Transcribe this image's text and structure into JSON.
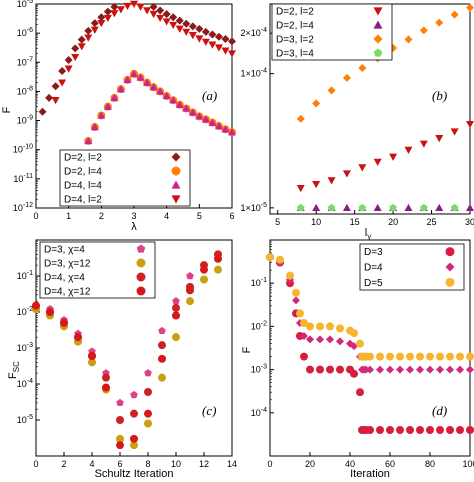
{
  "chart_data": [
    {
      "panel_label": "(a)",
      "type": "scatter",
      "title": "",
      "xlabel": "λ",
      "ylabel": "F",
      "xlim": [
        0,
        6
      ],
      "ylim": [
        1e-12,
        1e-05
      ],
      "yscale": "log",
      "xticks": [
        "0",
        "1",
        "2",
        "3",
        "4",
        "5",
        "6"
      ],
      "yticks": [
        "10^-12",
        "10^-11",
        "10^-10",
        "10^-9",
        "10^-8",
        "10^-7",
        "10^-6",
        "10^-5"
      ],
      "legend": "lower-right",
      "series": [
        {
          "name": "D=2, l=2",
          "color": "#8b1a1a",
          "marker": "diamond",
          "x": [
            0.2,
            0.4,
            0.6,
            0.8,
            1.0,
            1.2,
            1.4,
            1.6,
            1.8,
            2.0,
            2.2,
            2.4,
            2.6,
            2.8,
            3.0,
            3.2,
            3.4,
            3.6,
            3.8,
            4.0,
            4.2,
            4.4,
            4.6,
            4.8,
            5.0,
            5.2,
            5.4,
            5.6,
            5.8,
            6.0
          ],
          "y": [
            2e-09,
            6e-09,
            1.5e-08,
            5e-08,
            1.2e-07,
            3e-07,
            6e-07,
            1.2e-06,
            2.2e-06,
            3.5e-06,
            5.5e-06,
            8e-06,
            1.1e-05,
            1.5e-05,
            1.8e-05,
            1.5e-05,
            1.1e-05,
            8e-06,
            6e-06,
            4.5e-06,
            3.5e-06,
            2.7e-06,
            2.1e-06,
            1.7e-06,
            1.4e-06,
            1.1e-06,
            9e-07,
            7.5e-07,
            6.3e-07,
            5.2e-07
          ]
        },
        {
          "name": "D=2, l=4",
          "color": "#ff7f00",
          "marker": "circle",
          "x": [
            1.2,
            1.4,
            1.6,
            1.8,
            2.0,
            2.2,
            2.4,
            2.6,
            2.8,
            3.0,
            3.2,
            3.4,
            3.6,
            3.8,
            4.0,
            4.2,
            4.4,
            4.6,
            4.8,
            5.0,
            5.2,
            5.4,
            5.6,
            5.8,
            6.0
          ],
          "y": [
            1e-11,
            5e-11,
            2e-10,
            6e-10,
            1.5e-09,
            3e-09,
            6e-09,
            1.2e-08,
            2.5e-08,
            4e-08,
            3e-08,
            2e-08,
            1.4e-08,
            1e-08,
            7e-09,
            5e-09,
            3.5e-09,
            2.6e-09,
            1.9e-09,
            1.4e-09,
            1.1e-09,
            8.5e-10,
            6.5e-10,
            5e-10,
            4e-10
          ]
        },
        {
          "name": "D=4, l=4",
          "color": "#cc2299",
          "marker": "triangle-up",
          "x": [
            1.4,
            1.6,
            1.8,
            2.0,
            2.2,
            2.4,
            2.6,
            2.8,
            3.0,
            3.2,
            3.4,
            3.6,
            3.8,
            4.0,
            4.2,
            4.4,
            4.6,
            4.8,
            5.0,
            5.2,
            5.4,
            5.6,
            5.8,
            6.0
          ],
          "y": [
            5e-11,
            2e-10,
            6e-10,
            1.5e-09,
            3e-09,
            6e-09,
            1.2e-08,
            2.5e-08,
            4e-08,
            3e-08,
            2e-08,
            1.4e-08,
            1e-08,
            7e-09,
            5e-09,
            3.5e-09,
            2.6e-09,
            1.9e-09,
            1.4e-09,
            1.1e-09,
            8.5e-10,
            6.5e-10,
            5e-10,
            4e-10
          ]
        },
        {
          "name": "D=4, l=2",
          "color": "#cc1111",
          "marker": "triangle-down",
          "x": [
            0.6,
            0.8,
            1.0,
            1.2,
            1.4,
            1.6,
            1.8,
            2.0,
            2.2,
            2.4,
            2.6,
            2.8,
            3.0,
            3.2,
            3.4,
            3.6,
            3.8,
            4.0,
            4.2,
            4.4,
            4.6,
            4.8,
            5.0,
            5.2,
            5.4,
            5.6,
            5.8,
            6.0
          ],
          "y": [
            5e-09,
            2e-08,
            6e-08,
            1.5e-07,
            3.5e-07,
            7e-07,
            1.3e-06,
            2.2e-06,
            3.3e-06,
            4.8e-06,
            6.5e-06,
            8.5e-06,
            1e-05,
            8e-06,
            6e-06,
            4.5e-06,
            3.3e-06,
            2.5e-06,
            1.9e-06,
            1.4e-06,
            1.1e-06,
            8.5e-07,
            6.5e-07,
            5e-07,
            4e-07,
            3.2e-07,
            2.5e-07,
            2e-07
          ]
        }
      ]
    },
    {
      "panel_label": "(b)",
      "type": "scatter",
      "title": "",
      "xlabel": "l_y",
      "ylabel": "",
      "xlim": [
        4,
        30
      ],
      "ylim": [
        9e-06,
        0.00033
      ],
      "yscale": "log",
      "xticks": [
        "5",
        "10",
        "15",
        "20",
        "25",
        "30"
      ],
      "yticks": [
        "1×10^-5",
        "1×10^-4",
        "2×10^-4"
      ],
      "legend": "top-left",
      "series": [
        {
          "name": "D=2, l=2",
          "color": "#cc1111",
          "marker": "triangle-down",
          "x": [
            8,
            10,
            12,
            14,
            16,
            18,
            20,
            22,
            24,
            26,
            28,
            30
          ],
          "y": [
            1.4e-05,
            1.5e-05,
            1.6e-05,
            1.8e-05,
            2e-05,
            2.2e-05,
            2.4e-05,
            2.7e-05,
            3e-05,
            3.3e-05,
            3.7e-05,
            4.2e-05
          ]
        },
        {
          "name": "D=2, l=4",
          "color": "#8b1a8b",
          "marker": "triangle-up",
          "x": [
            8,
            10,
            12,
            14,
            16,
            18,
            20,
            22,
            24,
            26,
            28,
            30
          ],
          "y": [
            1e-05,
            1e-05,
            1e-05,
            1e-05,
            1e-05,
            1e-05,
            1e-05,
            1e-05,
            1e-05,
            1e-05,
            1e-05,
            1e-05
          ]
        },
        {
          "name": "D=3, l=2",
          "color": "#ff7f00",
          "marker": "diamond",
          "x": [
            8,
            10,
            12,
            14,
            16,
            18,
            20,
            22,
            24,
            26,
            28,
            30
          ],
          "y": [
            4.6e-05,
            6e-05,
            7.5e-05,
            9.3e-05,
            0.00011,
            0.00013,
            0.000155,
            0.00018,
            0.00021,
            0.00024,
            0.000275,
            0.00031
          ]
        },
        {
          "name": "D=3, l=4",
          "color": "#77dd66",
          "marker": "pentagon",
          "x": [
            8,
            12,
            16,
            20,
            24,
            28
          ],
          "y": [
            1e-05,
            1e-05,
            1e-05,
            1e-05,
            1e-05,
            1e-05
          ]
        }
      ]
    },
    {
      "panel_label": "(c)",
      "type": "scatter",
      "title": "",
      "xlabel": "Schultz Iteration",
      "ylabel": "F_SC",
      "xlim": [
        0,
        14
      ],
      "ylim": [
        1e-06,
        1
      ],
      "yscale": "log",
      "xticks": [
        "0",
        "2",
        "4",
        "6",
        "8",
        "10",
        "12",
        "14"
      ],
      "yticks": [
        "10^-5",
        "10^-4",
        "10^-3",
        "10^-2",
        "10^-1"
      ],
      "legend": "top-left",
      "series": [
        {
          "name": "D=3, χ=4",
          "color": "#e0408a",
          "marker": "pentagon",
          "x": [
            0,
            1,
            2,
            3,
            4,
            5,
            6,
            7,
            8,
            9,
            10,
            11,
            12,
            13
          ],
          "y": [
            0.015,
            0.012,
            0.006,
            0.0025,
            0.0008,
            0.0002,
            3e-05,
            5e-05,
            0.0002,
            0.003,
            0.02,
            0.1,
            0.2,
            0.3
          ]
        },
        {
          "name": "D=3, χ=12",
          "color": "#c8a010",
          "marker": "circle",
          "x": [
            0,
            1,
            2,
            3,
            4,
            5,
            6,
            7,
            8,
            9,
            10,
            11,
            12,
            13
          ],
          "y": [
            0.012,
            0.008,
            0.004,
            0.0015,
            0.0004,
            7e-05,
            3e-06,
            2e-06,
            8e-06,
            0.00015,
            0.002,
            0.02,
            0.08,
            0.15
          ]
        },
        {
          "name": "D=4, χ=4",
          "color": "#cc2222",
          "marker": "circle",
          "x": [
            0,
            1,
            2,
            3,
            4,
            5,
            6,
            7,
            8,
            9,
            10,
            11,
            12,
            13
          ],
          "y": [
            0.015,
            0.01,
            0.005,
            0.002,
            0.0006,
            0.00015,
            1e-05,
            1.5e-05,
            6e-05,
            0.0012,
            0.013,
            0.05,
            0.2,
            0.4
          ]
        },
        {
          "name": "D=4, χ=12",
          "color": "#d81818",
          "marker": "circle",
          "x": [
            0,
            1,
            2,
            3,
            4,
            5,
            6,
            7,
            8,
            9,
            10,
            11,
            12,
            13
          ],
          "y": [
            0.015,
            0.01,
            0.005,
            0.002,
            0.0006,
            8e-05,
            2e-06,
            3e-06,
            1.5e-05,
            0.0005,
            0.008,
            0.04,
            0.15,
            0.3
          ]
        }
      ]
    },
    {
      "panel_label": "(d)",
      "type": "scatter",
      "title": "",
      "xlabel": "Iteration",
      "ylabel": "F",
      "xlim": [
        0,
        100
      ],
      "ylim": [
        1e-05,
        1
      ],
      "yscale": "log",
      "xticks": [
        "0",
        "20",
        "40",
        "60",
        "80",
        "100"
      ],
      "yticks": [
        "10^-4",
        "10^-3",
        "10^-2",
        "10^-1"
      ],
      "legend": "top-right",
      "series": [
        {
          "name": "D=3",
          "color": "#d81e3c",
          "marker": "circle",
          "x": [
            0,
            5,
            10,
            13,
            15,
            17,
            20,
            25,
            30,
            35,
            40,
            42,
            45,
            46,
            47,
            48,
            50,
            55,
            60,
            65,
            70,
            75,
            80,
            85,
            90,
            95,
            100
          ],
          "y": [
            0.4,
            0.3,
            0.1,
            0.02,
            0.006,
            0.002,
            0.001,
            0.001,
            0.001,
            0.001,
            0.001,
            0.0008,
            0.0003,
            4e-05,
            4e-05,
            4e-05,
            4e-05,
            4e-05,
            4e-05,
            4e-05,
            4e-05,
            4e-05,
            4e-05,
            4e-05,
            4e-05,
            4e-05,
            4e-05
          ]
        },
        {
          "name": "D=4",
          "color": "#d4287e",
          "marker": "diamond",
          "x": [
            0,
            5,
            10,
            13,
            15,
            17,
            20,
            25,
            30,
            35,
            40,
            42,
            45,
            46,
            47,
            48,
            50,
            55,
            60,
            65,
            70,
            75,
            80,
            85,
            90,
            95,
            100
          ],
          "y": [
            0.4,
            0.3,
            0.12,
            0.04,
            0.012,
            0.006,
            0.005,
            0.005,
            0.005,
            0.0045,
            0.004,
            0.0035,
            0.002,
            0.001,
            0.001,
            0.001,
            0.001,
            0.001,
            0.001,
            0.001,
            0.001,
            0.001,
            0.001,
            0.001,
            0.001,
            0.001,
            0.001
          ]
        },
        {
          "name": "D=5",
          "color": "#f7b42e",
          "marker": "circle",
          "x": [
            0,
            5,
            10,
            13,
            15,
            17,
            20,
            25,
            30,
            35,
            40,
            42,
            45,
            46,
            47,
            48,
            50,
            55,
            60,
            65,
            70,
            75,
            80,
            85,
            90,
            95,
            100
          ],
          "y": [
            0.4,
            0.35,
            0.15,
            0.06,
            0.02,
            0.012,
            0.01,
            0.01,
            0.01,
            0.009,
            0.008,
            0.007,
            0.004,
            0.002,
            0.002,
            0.002,
            0.002,
            0.002,
            0.002,
            0.002,
            0.002,
            0.002,
            0.002,
            0.002,
            0.002,
            0.002,
            0.002
          ]
        }
      ]
    }
  ]
}
